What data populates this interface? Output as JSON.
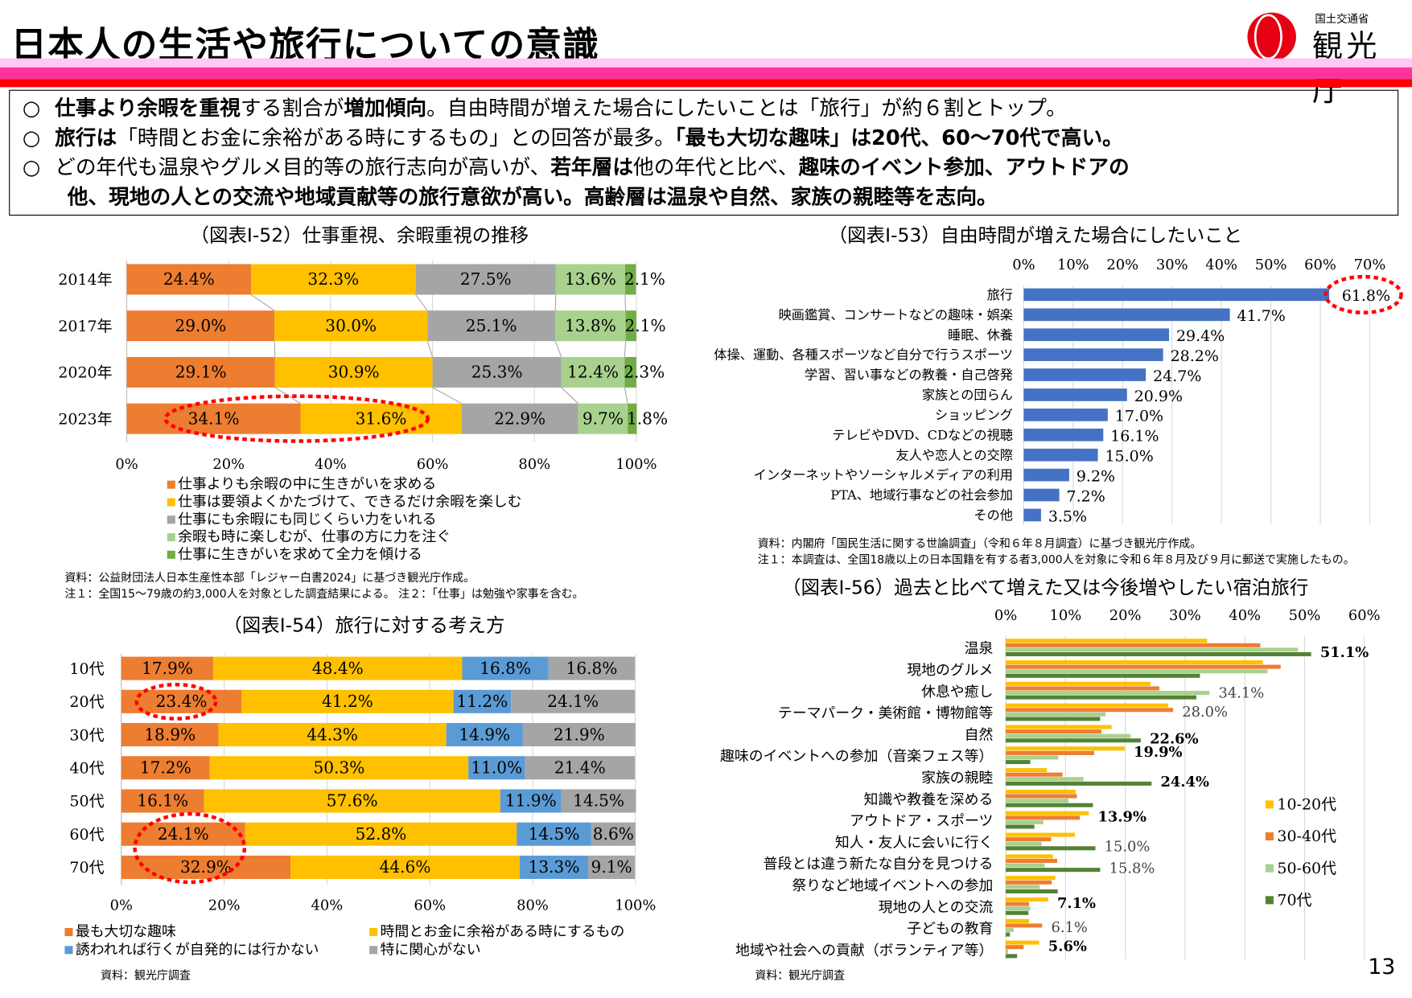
{
  "header": {
    "title": "日本人の生活や旅行についての意識",
    "logo_sub": "国土交通省",
    "logo_main": "観光庁",
    "band_colors": [
      "#FFC8F5",
      "#FF3399",
      "#FF0000"
    ]
  },
  "summary": {
    "bullet": "○",
    "lines": [
      [
        {
          "t": "仕事より余暇を重視",
          "b": true
        },
        {
          "t": "する割合が",
          "b": false
        },
        {
          "t": "増加傾向",
          "b": true
        },
        {
          "t": "。自由時間が増えた場合にしたいことは「旅行」が約６割とトップ。",
          "b": false
        }
      ],
      [
        {
          "t": "旅行は",
          "b": true
        },
        {
          "t": "「時間とお金に余裕がある時にするもの」との回答が最多。",
          "b": false
        },
        {
          "t": "「最も大切な趣味」は20代、60～70代で高い。",
          "b": true
        }
      ],
      [
        {
          "t": "どの年代も温泉やグルメ目的等の旅行志向が高いが、",
          "b": false
        },
        {
          "t": "若年層は",
          "b": true
        },
        {
          "t": "他の年代と比べ、",
          "b": false
        },
        {
          "t": "趣味のイベント参加、アウトドアの",
          "b": true
        }
      ],
      [
        {
          "t": "他、現地の人との交流や地域貢献等の旅行意欲が高い。高齢層は温泉や自然、家族の親睦等を志向。",
          "b": true
        }
      ]
    ]
  },
  "chart_data": [
    {
      "id": "I-52",
      "type": "bar",
      "orientation": "horizontal-stacked-100",
      "title": "（図表Ⅰ-52）仕事重視、余暇重視の推移",
      "categories": [
        "2014年",
        "2017年",
        "2020年",
        "2023年"
      ],
      "xlim": [
        0,
        100
      ],
      "xticks": [
        "0%",
        "20%",
        "40%",
        "60%",
        "80%",
        "100%"
      ],
      "grid": true,
      "legend": "bottom",
      "series": [
        {
          "name": "仕事よりも余暇の中に生きがいを求める",
          "color": "#ED7D31",
          "values": [
            24.4,
            29.0,
            29.1,
            34.1
          ]
        },
        {
          "name": "仕事は要領よくかたづけて、できるだけ余暇を楽しむ",
          "color": "#FFC000",
          "values": [
            32.3,
            30.0,
            30.9,
            31.6
          ]
        },
        {
          "name": "仕事にも余暇にも同じくらい力をいれる",
          "color": "#A5A5A5",
          "values": [
            27.5,
            25.1,
            25.3,
            22.9
          ]
        },
        {
          "name": "余暇も時に楽しむが、仕事の方に力を注ぐ",
          "color": "#A9D18E",
          "values": [
            13.6,
            13.8,
            12.4,
            9.7
          ]
        },
        {
          "name": "仕事に生きがいを求めて全力を傾ける",
          "color": "#70AD47",
          "values": [
            2.1,
            2.1,
            2.3,
            1.8
          ]
        }
      ],
      "highlight": "2023年 34.1% / 31.6%",
      "notes": [
        "資料：公益財団法人日本生産性本部「レジャー白書2024」に基づき観光庁作成。",
        "注１：全国15～79歳の約3,000人を対象とした調査結果による。 注２：「仕事」は勉強や家事を含む。"
      ]
    },
    {
      "id": "I-53",
      "type": "bar",
      "orientation": "horizontal",
      "title": "（図表Ⅰ-53）自由時間が増えた場合にしたいこと",
      "categories": [
        "旅行",
        "映画鑑賞、コンサートなどの趣味・娯楽",
        "睡眠、休養",
        "体操、運動、各種スポーツなど自分で行うスポーツ",
        "学習、習い事などの教養・自己啓発",
        "家族との団らん",
        "ショッピング",
        "テレビやDVD、CDなどの視聴",
        "友人や恋人との交際",
        "インターネットやソーシャルメディアの利用",
        "PTA、地域行事などの社会参加",
        "その他"
      ],
      "values": [
        61.8,
        41.7,
        29.4,
        28.2,
        24.7,
        20.9,
        17.0,
        16.1,
        15.0,
        9.2,
        7.2,
        3.5
      ],
      "labels": [
        "61.8%",
        "41.7%",
        "29.4%",
        "28.2%",
        "24.7%",
        "20.9%",
        "17.0%",
        "16.1%",
        "15.0%",
        "9.2%",
        "7.2%",
        "3.5%"
      ],
      "color": "#4472C4",
      "xlim": [
        0,
        70
      ],
      "xticks": [
        "0%",
        "10%",
        "20%",
        "30%",
        "40%",
        "50%",
        "60%",
        "70%"
      ],
      "grid": true,
      "highlight": "旅行 61.8%",
      "notes": [
        "資料：内閣府「国民生活に関する世論調査」（令和６年８月調査）に基づき観光庁作成。",
        "注１：本調査は、全国18歳以上の日本国籍を有する者3,000人を対象に令和６年８月及び９月に郵送で実施したもの。"
      ]
    },
    {
      "id": "I-54",
      "type": "bar",
      "orientation": "horizontal-stacked-100",
      "title": "（図表Ⅰ-54）旅行に対する考え方",
      "categories": [
        "10代",
        "20代",
        "30代",
        "40代",
        "50代",
        "60代",
        "70代"
      ],
      "xlim": [
        0,
        100
      ],
      "xticks": [
        "0%",
        "20%",
        "40%",
        "60%",
        "80%",
        "100%"
      ],
      "grid": true,
      "legend": "bottom",
      "series": [
        {
          "name": "最も大切な趣味",
          "color": "#ED7D31",
          "values": [
            17.9,
            23.4,
            18.9,
            17.2,
            16.1,
            24.1,
            32.9
          ]
        },
        {
          "name": "時間とお金に余裕がある時にするもの",
          "color": "#FFC000",
          "values": [
            48.4,
            41.2,
            44.3,
            50.3,
            57.6,
            52.8,
            44.6
          ]
        },
        {
          "name": "誘われれば行くが自発的には行かない",
          "color": "#5B9BD5",
          "values": [
            16.8,
            11.2,
            14.9,
            11.0,
            11.9,
            14.5,
            13.3
          ]
        },
        {
          "name": "特に関心がない",
          "color": "#A5A5A5",
          "values": [
            16.8,
            24.1,
            21.9,
            21.4,
            14.5,
            8.6,
            9.1
          ]
        }
      ],
      "highlight": "20代 23.4%, 60代 24.1%, 70代 32.9%",
      "notes": [
        "資料：観光庁調査"
      ]
    },
    {
      "id": "I-56",
      "type": "bar",
      "orientation": "horizontal-grouped",
      "title": "（図表Ⅰ-56）過去と比べて増えた又は今後増やしたい宿泊旅行",
      "categories": [
        "温泉",
        "現地のグルメ",
        "休息や癒し",
        "テーマパーク・美術館・博物館等",
        "自然",
        "趣味のイベントへの参加（音楽フェス等）",
        "家族の親睦",
        "知識や教養を深める",
        "アウトドア・スポーツ",
        "知人・友人に会いに行く",
        "普段とは違う新たな自分を見つける",
        "祭りなど地域イベントへの参加",
        "現地の人との交流",
        "子どもの教育",
        "地域や社会への貢献（ボランティア等）"
      ],
      "xlim": [
        0,
        60
      ],
      "xticks": [
        "0%",
        "10%",
        "20%",
        "30%",
        "40%",
        "50%",
        "60%"
      ],
      "grid": true,
      "legend": "right",
      "series": [
        {
          "name": "10-20代",
          "color": "#FFC000",
          "values": [
            33.7,
            43.0,
            24.2,
            27.2,
            17.7,
            19.9,
            6.9,
            11.7,
            13.9,
            11.6,
            7.9,
            8.3,
            7.1,
            3.9,
            5.6
          ]
        },
        {
          "name": "30-40代",
          "color": "#ED7D31",
          "values": [
            42.6,
            46.0,
            25.7,
            28.0,
            16.0,
            14.8,
            9.5,
            11.9,
            12.4,
            7.6,
            8.6,
            7.7,
            3.9,
            6.1,
            3.0
          ]
        },
        {
          "name": "50-60代",
          "color": "#A9D18E",
          "values": [
            48.9,
            43.8,
            34.1,
            16.7,
            20.9,
            8.8,
            13.0,
            10.5,
            6.3,
            6.0,
            6.5,
            5.7,
            4.1,
            1.3,
            0.4
          ]
        },
        {
          "name": "70代",
          "color": "#548235",
          "values": [
            51.1,
            32.5,
            31.9,
            15.8,
            22.6,
            4.1,
            24.4,
            14.6,
            4.8,
            15.0,
            15.8,
            8.7,
            3.8,
            0.7,
            1.9
          ]
        }
      ],
      "data_labels": [
        {
          "category": 0,
          "series": 3,
          "text": "51.1%",
          "bold": true
        },
        {
          "category": 2,
          "series": 2,
          "text": "34.1%",
          "bold": false
        },
        {
          "category": 3,
          "series": 1,
          "text": "28.0%",
          "bold": false
        },
        {
          "category": 4,
          "series": 3,
          "text": "22.6%",
          "bold": true
        },
        {
          "category": 5,
          "series": 0,
          "text": "19.9%",
          "bold": true
        },
        {
          "category": 6,
          "series": 3,
          "text": "24.4%",
          "bold": true
        },
        {
          "category": 8,
          "series": 0,
          "text": "13.9%",
          "bold": true
        },
        {
          "category": 9,
          "series": 3,
          "text": "15.0%",
          "bold": false
        },
        {
          "category": 10,
          "series": 3,
          "text": "15.8%",
          "bold": false
        },
        {
          "category": 12,
          "series": 0,
          "text": "7.1%",
          "bold": true
        },
        {
          "category": 13,
          "series": 1,
          "text": "6.1%",
          "bold": false
        },
        {
          "category": 14,
          "series": 0,
          "text": "5.6%",
          "bold": true
        }
      ],
      "notes": [
        "資料：観光庁調査"
      ]
    }
  ],
  "footer": {
    "page_number": "13"
  }
}
